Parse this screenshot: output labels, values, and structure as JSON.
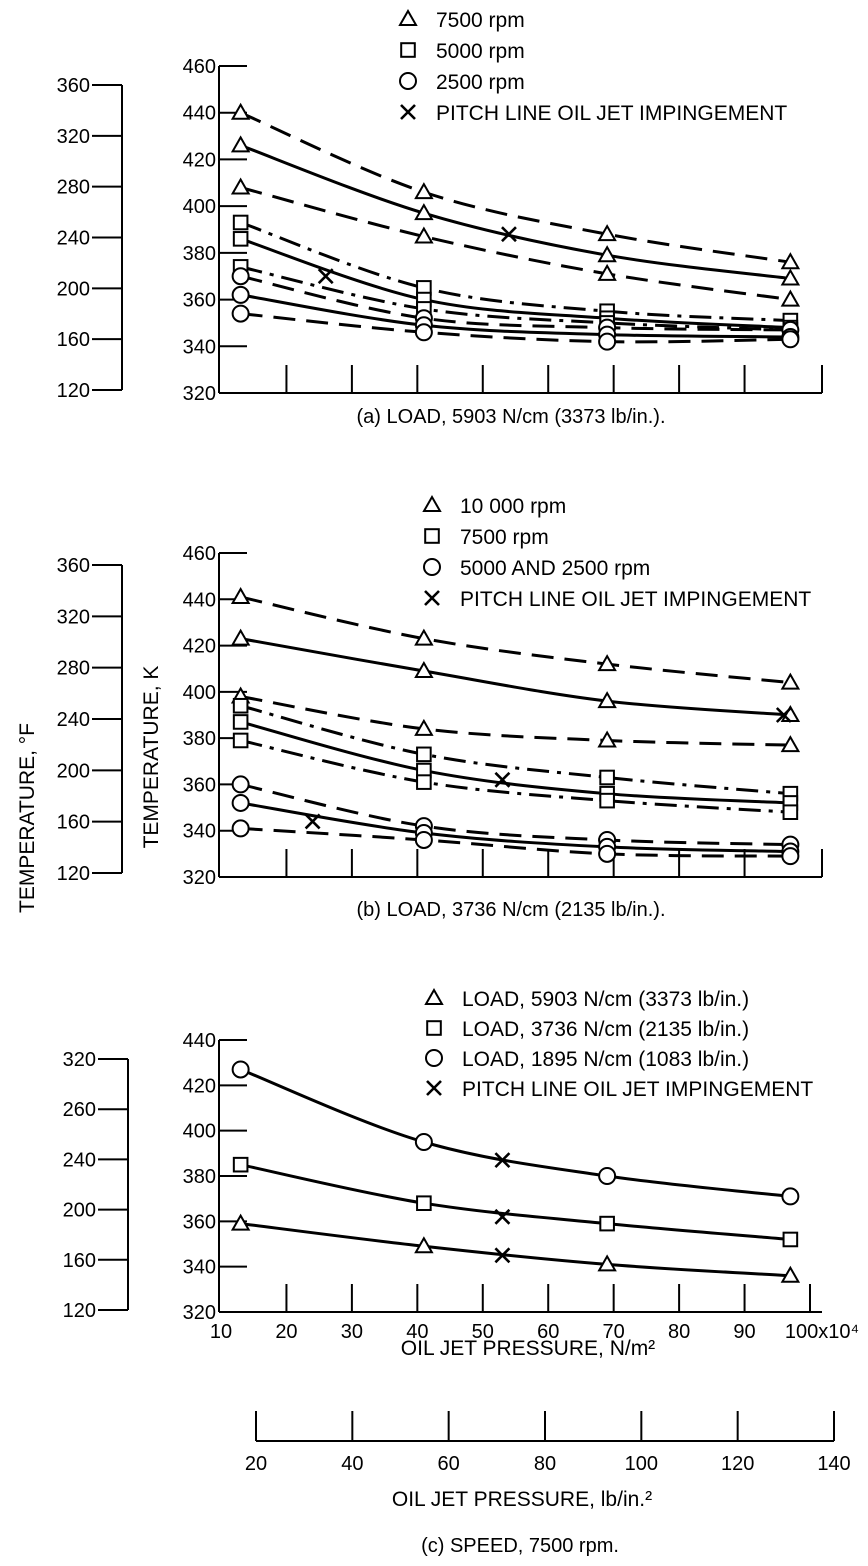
{
  "figure": {
    "shared_left_axis_titles": {
      "temperature_f": "TEMPERATURE, °F",
      "temperature_k": "TEMPERATURE, K"
    }
  },
  "chart_data": [
    {
      "type": "line",
      "panel": "a",
      "caption": "(a) LOAD, 5903 N/cm (3373 lb/in.).",
      "ylabel_k": "",
      "ylabel_f": "",
      "y_k_ticks": [
        320,
        340,
        360,
        380,
        400,
        420,
        440,
        460
      ],
      "y_f_ticks": [
        120,
        160,
        200,
        240,
        280,
        320,
        360
      ],
      "ylim_k": [
        320,
        460
      ],
      "x_ticks_unlabeled": true,
      "xlim": [
        10,
        100
      ],
      "legend": [
        {
          "marker": "triangle",
          "label": "7500 rpm"
        },
        {
          "marker": "square",
          "label": "5000 rpm"
        },
        {
          "marker": "circle",
          "label": "2500 rpm"
        },
        {
          "marker": "x",
          "label": "PITCH LINE OIL JET IMPINGEMENT"
        }
      ],
      "series": [
        {
          "marker": "triangle",
          "style": "dashed",
          "x": [
            13,
            41,
            69,
            97
          ],
          "y": [
            440,
            406,
            388,
            376
          ]
        },
        {
          "marker": "triangle",
          "style": "solid",
          "x": [
            13,
            41,
            69,
            97
          ],
          "y": [
            426,
            397,
            379,
            369
          ]
        },
        {
          "marker": "triangle",
          "style": "dashed",
          "x": [
            13,
            41,
            69,
            97
          ],
          "y": [
            408,
            387,
            371,
            360
          ]
        },
        {
          "marker": "square",
          "style": "dashdot",
          "x": [
            13,
            41,
            69,
            97
          ],
          "y": [
            393,
            365,
            355,
            351
          ]
        },
        {
          "marker": "square",
          "style": "solid",
          "x": [
            13,
            41,
            69,
            97
          ],
          "y": [
            386,
            360,
            352,
            348
          ]
        },
        {
          "marker": "square",
          "style": "dashdot",
          "x": [
            13,
            41,
            69,
            97
          ],
          "y": [
            374,
            356,
            350,
            347
          ]
        },
        {
          "marker": "circle",
          "style": "dashed",
          "x": [
            13,
            41,
            69,
            97
          ],
          "y": [
            370,
            352,
            348,
            347
          ]
        },
        {
          "marker": "circle",
          "style": "solid",
          "x": [
            13,
            41,
            69,
            97
          ],
          "y": [
            362,
            349,
            345,
            344
          ]
        },
        {
          "marker": "circle",
          "style": "dashed",
          "x": [
            13,
            41,
            69,
            97
          ],
          "y": [
            354,
            346,
            342,
            343
          ]
        }
      ],
      "impingement_points": [
        {
          "x": 26,
          "y": 370
        },
        {
          "x": 54,
          "y": 388
        }
      ]
    },
    {
      "type": "line",
      "panel": "b",
      "caption": "(b) LOAD, 3736 N/cm (2135 lb/in.).",
      "y_k_ticks": [
        320,
        340,
        360,
        380,
        400,
        420,
        440,
        460
      ],
      "y_f_ticks": [
        120,
        160,
        200,
        240,
        280,
        320,
        360
      ],
      "ylim_k": [
        320,
        460
      ],
      "x_ticks_unlabeled": true,
      "xlim": [
        10,
        100
      ],
      "legend": [
        {
          "marker": "triangle",
          "label": "10 000 rpm"
        },
        {
          "marker": "square",
          "label": "7500 rpm"
        },
        {
          "marker": "circle",
          "label": "5000 AND 2500 rpm"
        },
        {
          "marker": "x",
          "label": "PITCH LINE OIL JET IMPINGEMENT"
        }
      ],
      "series": [
        {
          "marker": "triangle",
          "style": "dashed",
          "x": [
            13,
            41,
            69,
            97
          ],
          "y": [
            441,
            423,
            412,
            404
          ]
        },
        {
          "marker": "triangle",
          "style": "solid",
          "x": [
            13,
            41,
            69,
            97
          ],
          "y": [
            423,
            409,
            396,
            390
          ]
        },
        {
          "marker": "triangle",
          "style": "dashed",
          "x": [
            13,
            41,
            69,
            97
          ],
          "y": [
            398,
            384,
            379,
            377
          ]
        },
        {
          "marker": "square",
          "style": "dashdot",
          "x": [
            13,
            41,
            69,
            97
          ],
          "y": [
            394,
            373,
            363,
            356
          ]
        },
        {
          "marker": "square",
          "style": "solid",
          "x": [
            13,
            41,
            69,
            97
          ],
          "y": [
            387,
            366,
            356,
            352
          ]
        },
        {
          "marker": "square",
          "style": "dashdot",
          "x": [
            13,
            41,
            69,
            97
          ],
          "y": [
            379,
            361,
            353,
            348
          ]
        },
        {
          "marker": "circle",
          "style": "dashed",
          "x": [
            13,
            41,
            69,
            97
          ],
          "y": [
            360,
            342,
            336,
            334
          ]
        },
        {
          "marker": "circle",
          "style": "solid",
          "x": [
            13,
            41,
            69,
            97
          ],
          "y": [
            352,
            339,
            333,
            331
          ]
        },
        {
          "marker": "circle",
          "style": "dashed",
          "x": [
            13,
            41,
            69,
            97
          ],
          "y": [
            341,
            336,
            330,
            329
          ]
        }
      ],
      "impingement_points": [
        {
          "x": 24,
          "y": 344
        },
        {
          "x": 53,
          "y": 362
        },
        {
          "x": 96,
          "y": 390
        }
      ]
    },
    {
      "type": "line",
      "panel": "c",
      "caption": "(c) SPEED, 7500 rpm.",
      "xlabel": "OIL JET PRESSURE, N/m²",
      "xlabel_secondary": "OIL JET PRESSURE, lb/in.²",
      "x_tick_labels": [
        "10",
        "20",
        "30",
        "40",
        "50",
        "60",
        "70",
        "80",
        "90",
        "100x10⁴"
      ],
      "x_ticks": [
        10,
        20,
        30,
        40,
        50,
        60,
        70,
        80,
        90,
        100
      ],
      "x2_ticks": [
        20,
        40,
        60,
        80,
        100,
        120,
        140
      ],
      "y_k_ticks": [
        320,
        340,
        360,
        380,
        400,
        420,
        440
      ],
      "y_f_ticks": [
        120,
        160,
        200,
        240,
        260,
        320
      ],
      "ylim_k": [
        320,
        440
      ],
      "xlim": [
        10,
        100
      ],
      "legend": [
        {
          "marker": "triangle",
          "label": "LOAD, 5903 N/cm (3373 lb/in.)"
        },
        {
          "marker": "square",
          "label": "LOAD, 3736 N/cm (2135 lb/in.)"
        },
        {
          "marker": "circle",
          "label": "LOAD, 1895 N/cm (1083 lb/in.)"
        },
        {
          "marker": "x",
          "label": "PITCH LINE OIL JET IMPINGEMENT"
        }
      ],
      "series": [
        {
          "marker": "circle",
          "style": "solid",
          "x": [
            13,
            41,
            69,
            97
          ],
          "y": [
            427,
            395,
            380,
            371
          ]
        },
        {
          "marker": "square",
          "style": "solid",
          "x": [
            13,
            41,
            69,
            97
          ],
          "y": [
            385,
            368,
            359,
            352
          ]
        },
        {
          "marker": "triangle",
          "style": "solid",
          "x": [
            13,
            41,
            69,
            97
          ],
          "y": [
            359,
            349,
            341,
            336
          ]
        }
      ],
      "impingement_points": [
        {
          "x": 53,
          "y": 387
        },
        {
          "x": 53,
          "y": 362
        },
        {
          "x": 53,
          "y": 345
        }
      ]
    }
  ]
}
